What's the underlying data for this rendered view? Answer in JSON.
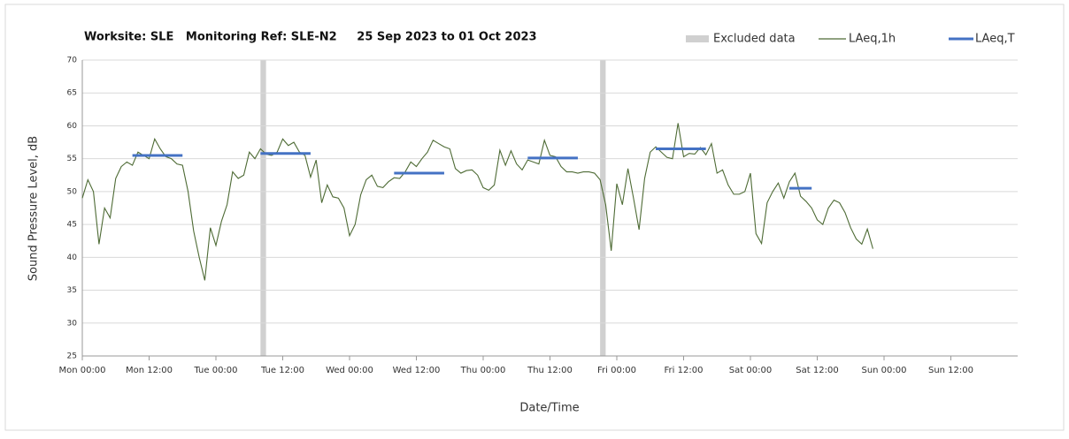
{
  "chart_data": {
    "type": "line",
    "title": "Worksite: SLE   Monitoring Ref: SLE-N2     25 Sep 2023 to 01 Oct 2023",
    "x_label": "Date/Time",
    "y_label": "Sound Pressure Level, dB",
    "xlim": [
      0,
      168
    ],
    "xticks": [
      {
        "value": 0,
        "label": "Mon 00:00"
      },
      {
        "value": 12,
        "label": "Mon 12:00"
      },
      {
        "value": 24,
        "label": "Tue 00:00"
      },
      {
        "value": 36,
        "label": "Tue 12:00"
      },
      {
        "value": 48,
        "label": "Wed 00:00"
      },
      {
        "value": 60,
        "label": "Wed 12:00"
      },
      {
        "value": 72,
        "label": "Thu 00:00"
      },
      {
        "value": 84,
        "label": "Thu 12:00"
      },
      {
        "value": 96,
        "label": "Fri 00:00"
      },
      {
        "value": 108,
        "label": "Fri 12:00"
      },
      {
        "value": 120,
        "label": "Sat 00:00"
      },
      {
        "value": 132,
        "label": "Sat 12:00"
      },
      {
        "value": 144,
        "label": "Sun 00:00"
      },
      {
        "value": 156,
        "label": "Sun 12:00"
      }
    ],
    "ylim": [
      25,
      70
    ],
    "yticks": [
      25,
      30,
      35,
      40,
      45,
      50,
      55,
      60,
      65,
      70
    ],
    "grid": true,
    "legend": "top-right",
    "excluded": {
      "name": "Excluded data",
      "color": "#d0d0d0",
      "ranges": [
        [
          32,
          33
        ],
        [
          93,
          94
        ]
      ]
    },
    "series": [
      {
        "name": "LAeq,1h",
        "color": "#4e6b35",
        "x": [
          0,
          1,
          2,
          3,
          4,
          5,
          6,
          7,
          8,
          9,
          10,
          11,
          12,
          13,
          14,
          15,
          16,
          17,
          18,
          19,
          20,
          21,
          22,
          23,
          24,
          25,
          26,
          27,
          28,
          29,
          30,
          31,
          32,
          33,
          34,
          35,
          36,
          37,
          38,
          39,
          40,
          41,
          42,
          43,
          44,
          45,
          46,
          47,
          48,
          49,
          50,
          51,
          52,
          53,
          54,
          55,
          56,
          57,
          58,
          59,
          60,
          61,
          62,
          63,
          64,
          65,
          66,
          67,
          68,
          69,
          70,
          71,
          72,
          73,
          74,
          75,
          76,
          77,
          78,
          79,
          80,
          81,
          82,
          83,
          84,
          85,
          86,
          87,
          88,
          89,
          90,
          91,
          92,
          93,
          94,
          95,
          96,
          97,
          98,
          99,
          100,
          101,
          102,
          103,
          104,
          105,
          106,
          107,
          108,
          109,
          110,
          111,
          112,
          113,
          114,
          115,
          116,
          117,
          118,
          119,
          120,
          121,
          122,
          123,
          124,
          125,
          126,
          127,
          128,
          129,
          130,
          131,
          132,
          133,
          134,
          135,
          136,
          137,
          138,
          139,
          140,
          141,
          142
        ],
        "values": [
          49,
          51.8,
          50,
          42,
          47.5,
          46,
          52,
          53.8,
          54.5,
          54,
          56,
          55.5,
          55,
          58,
          56.5,
          55.3,
          55,
          54.2,
          54,
          50,
          44,
          40,
          36.5,
          44.5,
          41.8,
          45.5,
          48,
          53,
          52,
          52.5,
          56,
          55,
          56.5,
          55.7,
          55.5,
          56,
          58,
          57,
          57.5,
          56,
          55.5,
          52.2,
          54.8,
          48.3,
          51,
          49.2,
          49,
          47.5,
          43.3,
          45,
          49.5,
          51.8,
          52.5,
          50.8,
          50.6,
          51.5,
          52.1,
          52,
          53,
          54.5,
          53.8,
          55,
          56,
          57.8,
          57.3,
          56.8,
          56.5,
          53.5,
          52.8,
          53.2,
          53.3,
          52.5,
          50.6,
          50.2,
          51,
          56.3,
          54,
          56.2,
          54.2,
          53.3,
          54.8,
          54.5,
          54.2,
          57.8,
          55.5,
          55.3,
          53.8,
          53,
          53,
          52.8,
          53,
          53,
          52.8,
          51.8,
          48,
          41,
          51.2,
          48,
          53.5,
          49,
          44.2,
          52,
          56,
          56.8,
          56,
          55.2,
          55,
          60.4,
          55.3,
          55.8,
          55.7,
          56.7,
          55.6,
          57.3,
          52.8,
          53.3,
          51,
          49.6,
          49.6,
          50,
          52.8,
          43.6,
          42.1,
          48.3,
          50,
          51.3,
          49,
          51.5,
          52.8,
          49.3,
          48.5,
          47.5,
          45.7,
          45,
          47.5,
          48.7,
          48.3,
          46.8,
          44.5,
          42.8,
          42,
          44.3,
          41.3
        ]
      },
      {
        "name": "LAeq,T",
        "color": "#4472c4",
        "ranges": [
          [
            9,
            18
          ],
          [
            32,
            41
          ],
          [
            56,
            65
          ],
          [
            80,
            89
          ],
          [
            103,
            112
          ],
          [
            127,
            131
          ]
        ],
        "values": [
          55.5,
          55.8,
          52.8,
          55.1,
          56.5,
          50.5
        ]
      }
    ]
  }
}
